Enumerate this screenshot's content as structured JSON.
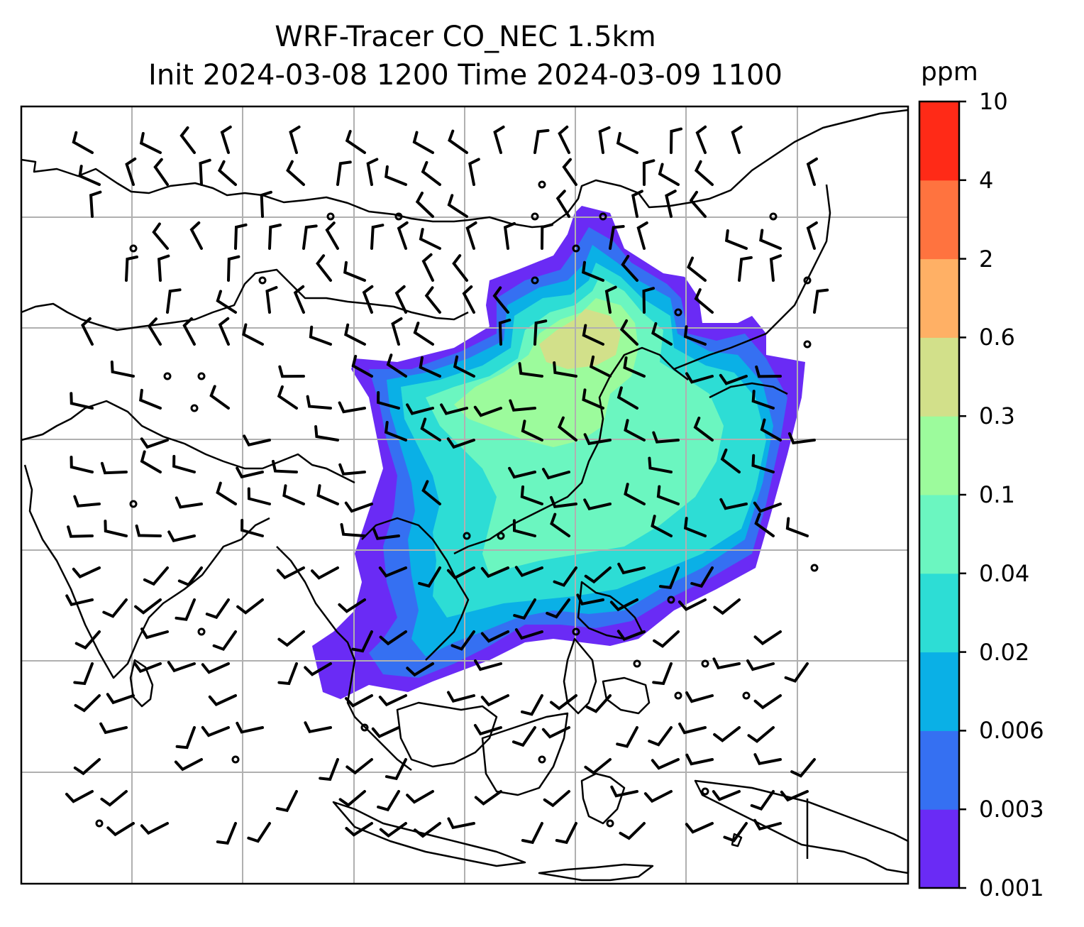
{
  "title": {
    "line1": "WRF-Tracer CO_NEC 1.5km",
    "line2": "Init 2024-03-08 1200 Time 2024-03-09 1100"
  },
  "colorbar": {
    "unit": "ppm",
    "levels": [
      "0.001",
      "0.003",
      "0.006",
      "0.02",
      "0.04",
      "0.1",
      "0.3",
      "0.6",
      "2",
      "4",
      "10"
    ],
    "colors": [
      "#6a2bf5",
      "#3570f2",
      "#0ab0e6",
      "#2dddd5",
      "#6bf6c0",
      "#9cfb9c",
      "#d2e08a",
      "#ffb065",
      "#ff733f",
      "#ff2a17"
    ]
  },
  "map": {
    "gridlines": true,
    "wind_barbs": true,
    "coastlines": true,
    "field": "CO_NEC tracer concentration"
  }
}
